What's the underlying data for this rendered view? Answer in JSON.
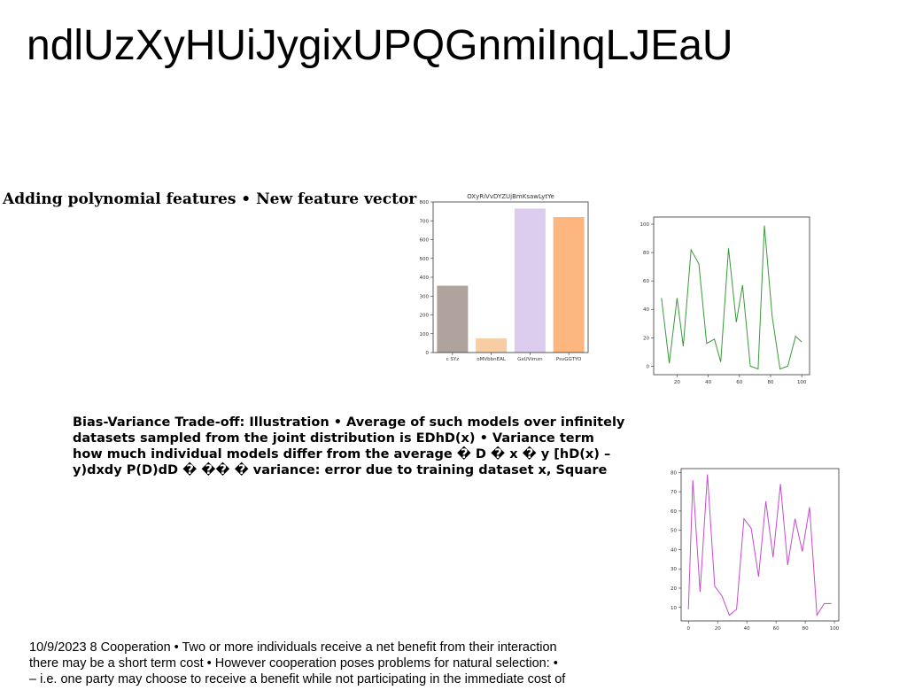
{
  "slide": {
    "title": "ndlUzXyHUiJygixUPQGnmiInqLJEaU",
    "subtitle": "Adding polynomial features • New feature vector",
    "bias_lines": [
      "Bias-Variance Trade-off: Illustration • Average of such models over infinitely",
      "datasets sampled from the joint distribution is EDhD(x) • Variance term",
      "how much individual models differ from the average � D � x � y [hD(x) –",
      "y)dxdy P(D)dD � �� � variance: error due to training dataset x, Square"
    ],
    "coop_lines": [
      "10/9/2023 8 Cooperation • Two or more individuals receive a net benefit from their interaction",
      "there may be a short term cost • However cooperation poses problems for natural selection: •",
      "– i.e. one party may choose to receive a benefit while not participating in the immediate cost of"
    ]
  },
  "chart_data": [
    {
      "type": "bar",
      "title": "OXyRiVvDYZUjBmKsawLytYe",
      "categories": [
        "c SYz",
        "oMVbbnEAL",
        "GxUVimzn",
        "PsvGGTYO"
      ],
      "values": [
        355,
        75,
        765,
        720
      ],
      "colors": [
        "#b0a29d",
        "#f8cda4",
        "#dccdee",
        "#fdb67e"
      ],
      "ylim": [
        0,
        800
      ],
      "yticks": [
        0,
        100,
        200,
        300,
        400,
        500,
        600,
        700,
        800
      ]
    },
    {
      "type": "line",
      "color": "#3a9a3a",
      "x": [
        10,
        15,
        20,
        24,
        29,
        34,
        39,
        44,
        48,
        53,
        58,
        62,
        67,
        72,
        76,
        81,
        86,
        91,
        96,
        100
      ],
      "y": [
        48,
        2,
        48,
        14,
        82,
        72,
        16,
        19,
        3,
        83,
        31,
        57,
        0,
        -2,
        99,
        35,
        -2,
        0,
        21,
        17
      ],
      "xlim": [
        5,
        105
      ],
      "ylim": [
        -6,
        105
      ],
      "xticks": [
        20,
        40,
        60,
        80,
        100
      ],
      "yticks": [
        0,
        20,
        40,
        60,
        80,
        100
      ]
    },
    {
      "type": "line",
      "color": "#c44ccc",
      "x": [
        0,
        3,
        8,
        13,
        18,
        23,
        28,
        33,
        38,
        43,
        48,
        53,
        58,
        63,
        68,
        73,
        78,
        83,
        88,
        93,
        98
      ],
      "y": [
        9,
        76,
        18,
        79,
        21,
        16,
        6,
        9,
        56,
        51,
        26,
        65,
        36,
        74,
        32,
        56,
        39,
        62,
        6,
        12,
        12
      ],
      "xlim": [
        -5,
        103
      ],
      "ylim": [
        3,
        82
      ],
      "xticks": [
        0,
        20,
        40,
        60,
        80,
        100
      ],
      "yticks": [
        10,
        20,
        30,
        40,
        50,
        60,
        70,
        80
      ]
    }
  ]
}
